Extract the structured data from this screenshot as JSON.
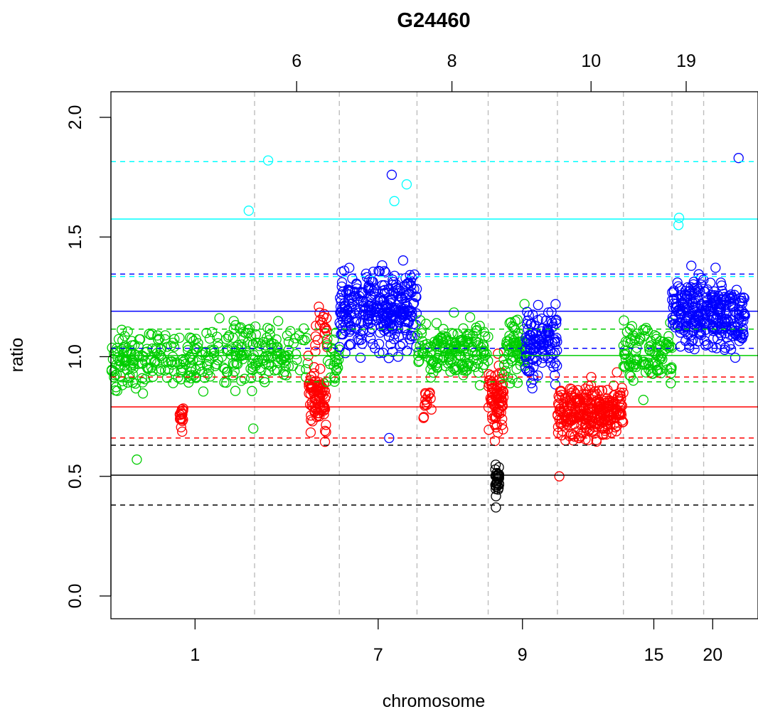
{
  "chart_data": {
    "type": "scatter",
    "title": "G24460",
    "xlabel": "chromosome",
    "ylabel": "ratio",
    "ylim": [
      0.0,
      2.0
    ],
    "y_ticks": [
      "0.0",
      "0.5",
      "1.0",
      "1.5",
      "2.0"
    ],
    "x_ticks_bottom": [
      {
        "label": "1",
        "pos": 0.13
      },
      {
        "label": "7",
        "pos": 0.413
      },
      {
        "label": "9",
        "pos": 0.636
      },
      {
        "label": "15",
        "pos": 0.839
      },
      {
        "label": "20",
        "pos": 0.93
      }
    ],
    "x_ticks_top": [
      {
        "label": "6",
        "pos": 0.287
      },
      {
        "label": "8",
        "pos": 0.527
      },
      {
        "label": "10",
        "pos": 0.742
      },
      {
        "label": "19",
        "pos": 0.889
      }
    ],
    "chromosome_boundaries": [
      0.222,
      0.353,
      0.473,
      0.583,
      0.69,
      0.792,
      0.867,
      0.916
    ],
    "grid": "vertical dashed at chromosome boundaries",
    "colors": {
      "gain": "#0000ff",
      "high_gain": "#00ffff",
      "neutral": "#00cd00",
      "loss": "#ff0000",
      "deep_loss": "#000000",
      "boundary_grid": "#bebebe"
    },
    "reference_lines": [
      {
        "level": "high_gain",
        "y": 1.575,
        "upper": 1.815,
        "lower": 1.335
      },
      {
        "level": "gain",
        "y": 1.19,
        "upper": 1.345,
        "lower": 1.035
      },
      {
        "level": "neutral",
        "y": 1.005,
        "upper": 1.115,
        "lower": 0.895
      },
      {
        "level": "loss",
        "y": 0.79,
        "upper": 0.915,
        "lower": 0.66
      },
      {
        "level": "deep_loss",
        "y": 0.505,
        "upper": 0.63,
        "lower": 0.38
      }
    ],
    "segments": [
      {
        "x": [
          0.0,
          0.1
        ],
        "y_center": 1.0,
        "y_spread": 0.12,
        "level": "neutral",
        "density": 130
      },
      {
        "x": [
          0.1,
          0.125
        ],
        "y_center": 0.98,
        "y_spread": 0.12,
        "level": "neutral",
        "density": 25
      },
      {
        "x": [
          0.106,
          0.112
        ],
        "y_center": 0.75,
        "y_spread": 0.06,
        "level": "loss",
        "density": 18
      },
      {
        "x": [
          0.125,
          0.305
        ],
        "y_center": 1.01,
        "y_spread": 0.12,
        "level": "neutral",
        "density": 190
      },
      {
        "x": [
          0.305,
          0.333
        ],
        "y_center": 0.82,
        "y_spread": 0.14,
        "level": "loss",
        "density": 90
      },
      {
        "x": [
          0.315,
          0.335
        ],
        "y_center": 1.1,
        "y_spread": 0.1,
        "level": "loss",
        "density": 20
      },
      {
        "x": [
          0.333,
          0.353
        ],
        "y_center": 1.0,
        "y_spread": 0.12,
        "level": "neutral",
        "density": 25
      },
      {
        "x": [
          0.353,
          0.473
        ],
        "y_center": 1.2,
        "y_spread": 0.16,
        "level": "gain",
        "density": 320
      },
      {
        "x": [
          0.473,
          0.583
        ],
        "y_center": 1.03,
        "y_spread": 0.12,
        "level": "neutral",
        "density": 170
      },
      {
        "x": [
          0.483,
          0.497
        ],
        "y_center": 0.8,
        "y_spread": 0.08,
        "level": "loss",
        "density": 14
      },
      {
        "x": [
          0.583,
          0.607
        ],
        "y_center": 0.83,
        "y_spread": 0.14,
        "level": "loss",
        "density": 80
      },
      {
        "x": [
          0.594,
          0.6
        ],
        "y_center": 0.5,
        "y_spread": 0.08,
        "level": "deep_loss",
        "density": 30
      },
      {
        "x": [
          0.607,
          0.64
        ],
        "y_center": 1.03,
        "y_spread": 0.13,
        "level": "neutral",
        "density": 70
      },
      {
        "x": [
          0.64,
          0.69
        ],
        "y_center": 1.06,
        "y_spread": 0.15,
        "level": "gain",
        "density": 120
      },
      {
        "x": [
          0.69,
          0.792
        ],
        "y_center": 0.77,
        "y_spread": 0.11,
        "level": "loss",
        "density": 280
      },
      {
        "x": [
          0.792,
          0.867
        ],
        "y_center": 1.01,
        "y_spread": 0.12,
        "level": "neutral",
        "density": 110
      },
      {
        "x": [
          0.867,
          0.98
        ],
        "y_center": 1.18,
        "y_spread": 0.14,
        "level": "gain",
        "density": 300
      }
    ],
    "notable_points": [
      {
        "x": 0.243,
        "y": 1.82,
        "level": "high_gain"
      },
      {
        "x": 0.97,
        "y": 1.83,
        "level": "gain"
      },
      {
        "x": 0.434,
        "y": 1.76,
        "level": "gain"
      },
      {
        "x": 0.438,
        "y": 1.65,
        "level": "high_gain"
      },
      {
        "x": 0.457,
        "y": 1.72,
        "level": "high_gain"
      },
      {
        "x": 0.213,
        "y": 1.61,
        "level": "high_gain"
      },
      {
        "x": 0.878,
        "y": 1.58,
        "level": "high_gain"
      },
      {
        "x": 0.877,
        "y": 1.55,
        "level": "high_gain"
      },
      {
        "x": 0.04,
        "y": 0.57,
        "level": "neutral"
      },
      {
        "x": 0.595,
        "y": 0.37,
        "level": "deep_loss"
      },
      {
        "x": 0.693,
        "y": 0.5,
        "level": "loss"
      },
      {
        "x": 0.43,
        "y": 0.66,
        "level": "gain"
      },
      {
        "x": 0.22,
        "y": 0.7,
        "level": "neutral"
      }
    ]
  }
}
